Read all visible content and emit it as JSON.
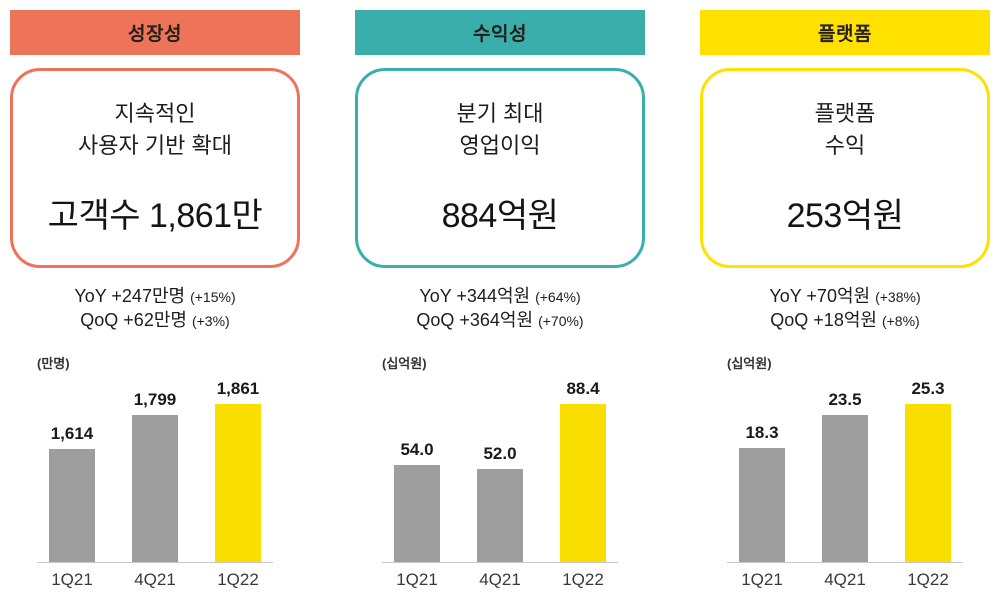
{
  "columns": [
    {
      "badge": "성장성",
      "accent": "#ED7459",
      "box_line1": "지속적인",
      "box_line2": "사용자 기반 확대",
      "headline": "고객수 1,861만",
      "yoy": "YoY +247만명",
      "yoy_pct": "(+15%)",
      "qoq": "QoQ +62만명",
      "qoq_pct": "(+3%)"
    },
    {
      "badge": "수익성",
      "accent": "#3AAEAB",
      "box_line1": "분기 최대",
      "box_line2": "영업이익",
      "headline": "884억원",
      "yoy": "YoY +344억원",
      "yoy_pct": "(+64%)",
      "qoq": "QoQ +364억원",
      "qoq_pct": "(+70%)"
    },
    {
      "badge": "플랫폼",
      "accent": "#FFE100",
      "box_line1": "플랫폼",
      "box_line2": "수익",
      "headline": "253억원",
      "yoy": "YoY +70억원",
      "yoy_pct": "(+38%)",
      "qoq": "QoQ +18억원",
      "qoq_pct": "(+8%)"
    }
  ],
  "chart_data": [
    {
      "type": "bar",
      "title": "고객수",
      "unit": "(만명)",
      "categories": [
        "1Q21",
        "4Q21",
        "1Q22"
      ],
      "values": [
        1614,
        1799,
        1861
      ],
      "value_labels": [
        "1,614",
        "1,799",
        "1,861"
      ],
      "ylim": [
        1000,
        1861
      ],
      "bar_color": "#9E9E9E",
      "highlight_color": "#F9DF00",
      "highlight_index": 2,
      "grid": false,
      "legend": false
    },
    {
      "type": "bar",
      "title": "영업이익",
      "unit": "(십억원)",
      "categories": [
        "1Q21",
        "4Q21",
        "1Q22"
      ],
      "values": [
        54.0,
        52.0,
        88.4
      ],
      "value_labels": [
        "54.0",
        "52.0",
        "88.4"
      ],
      "ylim": [
        0,
        88.4
      ],
      "bar_color": "#9E9E9E",
      "highlight_color": "#F9DF00",
      "highlight_index": 2,
      "grid": false,
      "legend": false
    },
    {
      "type": "bar",
      "title": "플랫폼 수익",
      "unit": "(십억원)",
      "categories": [
        "1Q21",
        "4Q21",
        "1Q22"
      ],
      "values": [
        18.3,
        23.5,
        25.3
      ],
      "value_labels": [
        "18.3",
        "23.5",
        "25.3"
      ],
      "ylim": [
        0,
        25.3
      ],
      "bar_color": "#9E9E9E",
      "highlight_color": "#F9DF00",
      "highlight_index": 2,
      "grid": false,
      "legend": false
    }
  ]
}
